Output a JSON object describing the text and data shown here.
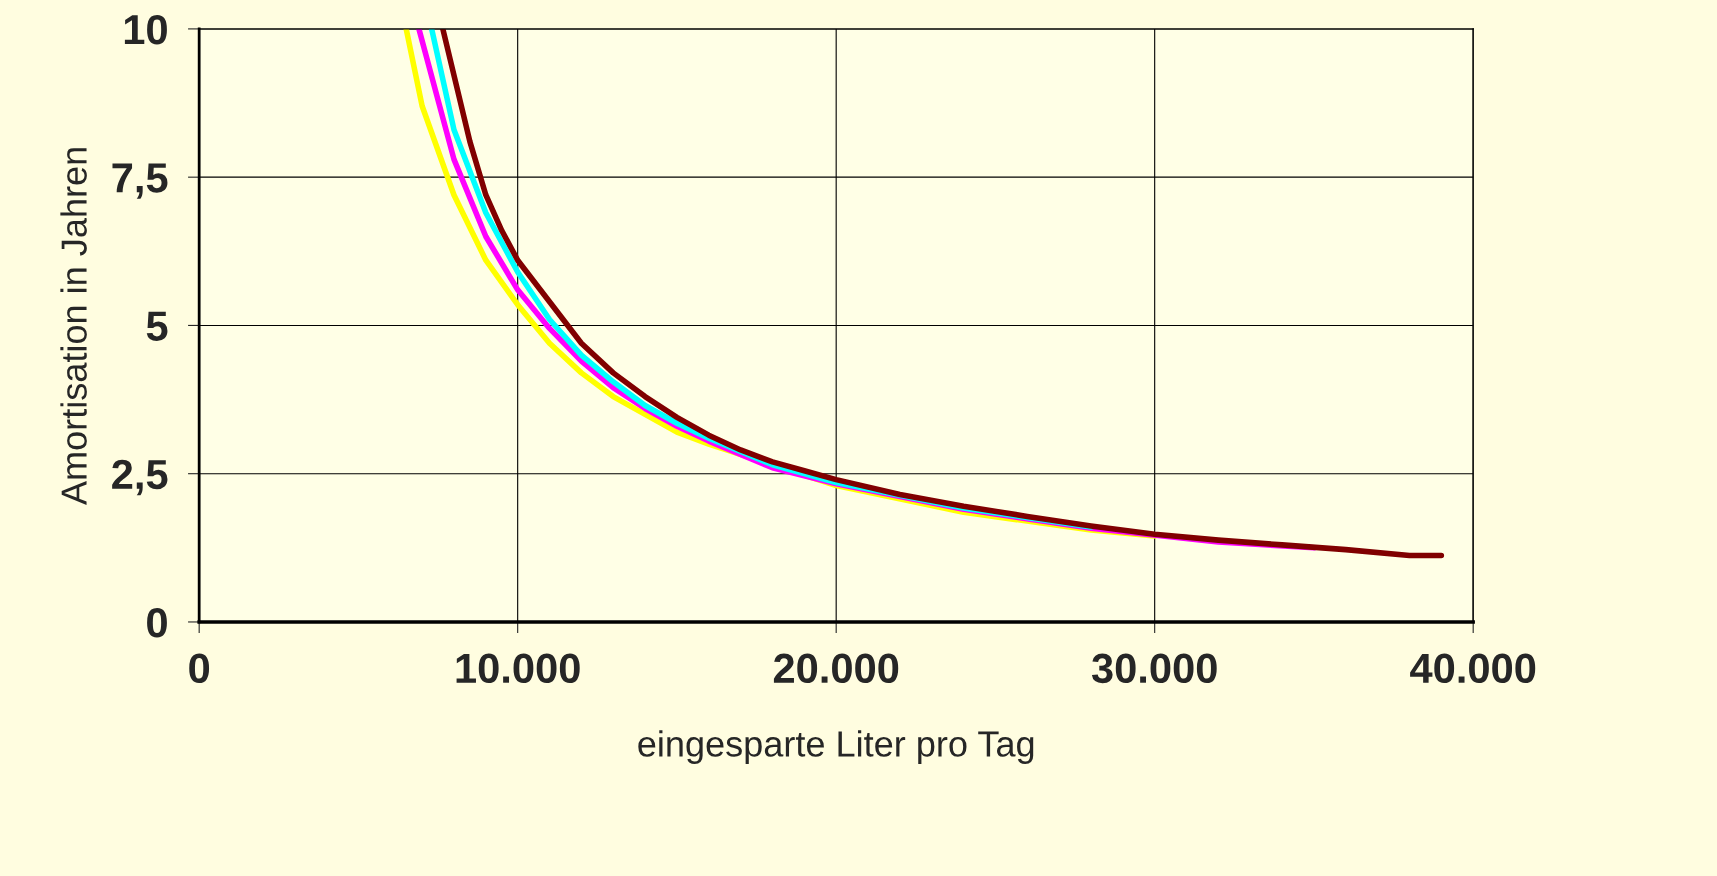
{
  "chart_data": {
    "type": "line",
    "xlabel": "eingesparte Liter pro Tag",
    "ylabel": "Amortisation in Jahren",
    "xlim": [
      0,
      40000
    ],
    "ylim": [
      0,
      10
    ],
    "xticks": [
      0,
      {
        "value": 10000,
        "label": "10.000"
      },
      {
        "value": 20000,
        "label": "20.000"
      },
      {
        "value": 30000,
        "label": "30.000"
      },
      {
        "value": 40000,
        "label": "40.000"
      }
    ],
    "yticks": [
      0,
      {
        "value": 2.5,
        "label": "2,5"
      },
      5,
      {
        "value": 7.5,
        "label": "7,5"
      },
      10
    ],
    "grid": true,
    "legend": false,
    "marker": "none",
    "line_style": "solid",
    "series": [
      {
        "color": "#ffff00",
        "x": [
          6500,
          7000,
          8000,
          9000,
          10000,
          11000,
          12000,
          13000,
          14000,
          15000,
          16000,
          20000,
          24000,
          28000,
          30000
        ],
        "values": [
          10,
          8.7,
          7.2,
          6.1,
          5.35,
          4.7,
          4.2,
          3.8,
          3.5,
          3.2,
          3.0,
          2.3,
          1.85,
          1.55,
          1.45
        ]
      },
      {
        "color": "#ff00ff",
        "x": [
          6900,
          8000,
          9000,
          10000,
          11000,
          12000,
          13000,
          14000,
          15000,
          16000,
          18000,
          20000,
          24000,
          28000,
          32000,
          35000
        ],
        "values": [
          10,
          7.8,
          6.5,
          5.6,
          4.95,
          4.4,
          3.95,
          3.6,
          3.3,
          3.05,
          2.6,
          2.33,
          1.9,
          1.58,
          1.35,
          1.25
        ]
      },
      {
        "color": "#00ffff",
        "x": [
          7300,
          8000,
          9000,
          10000,
          11000,
          12000,
          13000,
          14000,
          15000,
          16000,
          18000,
          20000,
          24000,
          28000
        ],
        "values": [
          10,
          8.3,
          6.9,
          5.9,
          5.1,
          4.5,
          4.05,
          3.65,
          3.35,
          3.1,
          2.65,
          2.35,
          1.92,
          1.6
        ]
      },
      {
        "color": "#800000",
        "x": [
          7650,
          8500,
          9000,
          9500,
          10000,
          11000,
          12000,
          13000,
          14000,
          15000,
          16000,
          17000,
          18000,
          19000,
          20000,
          22000,
          24000,
          26000,
          28000,
          30000,
          32000,
          34000,
          36000,
          38000,
          39000
        ],
        "values": [
          10,
          8.1,
          7.2,
          6.6,
          6.1,
          5.4,
          4.7,
          4.2,
          3.8,
          3.45,
          3.15,
          2.9,
          2.7,
          2.55,
          2.4,
          2.15,
          1.95,
          1.78,
          1.62,
          1.48,
          1.38,
          1.3,
          1.22,
          1.12,
          1.12
        ]
      }
    ]
  }
}
